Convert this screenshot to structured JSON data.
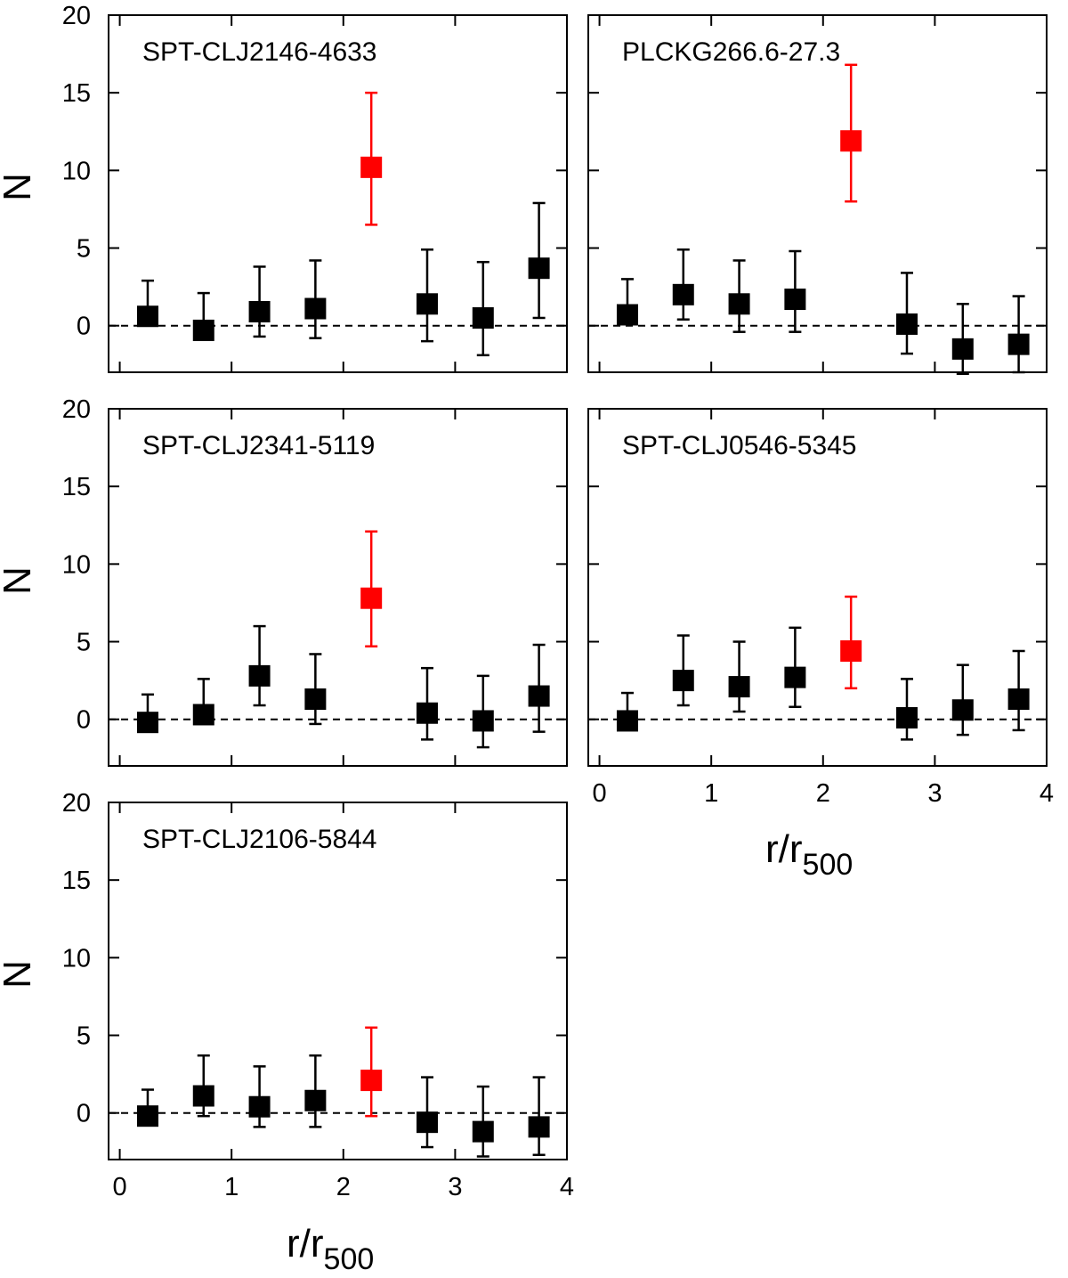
{
  "figure": {
    "shared_xlabel_main": "r/r",
    "shared_xlabel_sub": "500",
    "shared_ylabel": "N",
    "colors": {
      "background_point": "#000000",
      "highlight_point": "#ff0000",
      "zero_line": "#000000"
    }
  },
  "chart_data": [
    {
      "type": "scatter",
      "title": "SPT-CLJ2146-4633",
      "xlabel": "r/r500",
      "ylabel": "N",
      "xlim": [
        -0.1,
        4
      ],
      "ylim": [
        -3,
        20
      ],
      "xticks": [
        "0",
        "1",
        "2",
        "3",
        "4"
      ],
      "yticks": [
        "0",
        "5",
        "10",
        "15",
        "20"
      ],
      "reference_line": 0,
      "x": [
        0.25,
        0.75,
        1.25,
        1.75,
        2.25,
        2.75,
        3.25,
        3.75
      ],
      "y": [
        0.6,
        -0.3,
        0.9,
        1.1,
        10.2,
        1.4,
        0.5,
        3.7
      ],
      "yerr_low": [
        0.3,
        0.4,
        1.6,
        1.9,
        3.7,
        2.4,
        2.4,
        3.2
      ],
      "yerr_high": [
        2.3,
        2.4,
        2.9,
        3.1,
        4.8,
        3.5,
        3.6,
        4.2
      ],
      "highlight_index": 4
    },
    {
      "type": "scatter",
      "title": "PLCKG266.6-27.3",
      "xlabel": "r/r500",
      "ylabel": "N",
      "xlim": [
        -0.1,
        4
      ],
      "ylim": [
        -3,
        20
      ],
      "xticks": [
        "0",
        "1",
        "2",
        "3",
        "4"
      ],
      "yticks": [
        "0",
        "5",
        "10",
        "15",
        "20"
      ],
      "reference_line": 0,
      "x": [
        0.25,
        0.75,
        1.25,
        1.75,
        2.25,
        2.75,
        3.25,
        3.75
      ],
      "y": [
        0.7,
        2.0,
        1.4,
        1.7,
        11.9,
        0.1,
        -1.5,
        -1.2
      ],
      "yerr_low": [
        0.2,
        1.6,
        1.8,
        2.1,
        3.9,
        1.9,
        1.6,
        1.8
      ],
      "yerr_high": [
        2.3,
        2.9,
        2.8,
        3.1,
        4.9,
        3.3,
        2.9,
        3.1
      ],
      "highlight_index": 4
    },
    {
      "type": "scatter",
      "title": "SPT-CLJ2341-5119",
      "xlabel": "r/r500",
      "ylabel": "N",
      "xlim": [
        -0.1,
        4
      ],
      "ylim": [
        -3,
        20
      ],
      "xticks": [
        "0",
        "1",
        "2",
        "3",
        "4"
      ],
      "yticks": [
        "0",
        "5",
        "10",
        "15",
        "20"
      ],
      "reference_line": 0,
      "x": [
        0.25,
        0.75,
        1.25,
        1.75,
        2.25,
        2.75,
        3.25,
        3.75
      ],
      "y": [
        -0.2,
        0.3,
        2.8,
        1.3,
        7.8,
        0.4,
        -0.1,
        1.5
      ],
      "yerr_low": [
        0.2,
        0.3,
        1.9,
        1.6,
        3.1,
        1.7,
        1.7,
        2.3
      ],
      "yerr_high": [
        1.8,
        2.3,
        3.2,
        2.9,
        4.3,
        2.9,
        2.9,
        3.3
      ],
      "highlight_index": 4
    },
    {
      "type": "scatter",
      "title": "SPT-CLJ0546-5345",
      "xlabel": "r/r500",
      "ylabel": "N",
      "xlim": [
        -0.1,
        4
      ],
      "ylim": [
        -3,
        20
      ],
      "xticks": [
        "0",
        "1",
        "2",
        "3",
        "4"
      ],
      "yticks": [
        "0",
        "5",
        "10",
        "15",
        "20"
      ],
      "reference_line": 0,
      "x": [
        0.25,
        0.75,
        1.25,
        1.75,
        2.25,
        2.75,
        3.25,
        3.75
      ],
      "y": [
        -0.1,
        2.5,
        2.1,
        2.7,
        4.4,
        0.1,
        0.6,
        1.3
      ],
      "yerr_low": [
        0.2,
        1.6,
        1.6,
        1.9,
        2.4,
        1.4,
        1.6,
        2.0
      ],
      "yerr_high": [
        1.8,
        2.9,
        2.9,
        3.2,
        3.5,
        2.5,
        2.9,
        3.1
      ],
      "highlight_index": 4
    },
    {
      "type": "scatter",
      "title": "SPT-CLJ2106-5844",
      "xlabel": "r/r500",
      "ylabel": "N",
      "xlim": [
        -0.1,
        4
      ],
      "ylim": [
        -3,
        20
      ],
      "xticks": [
        "0",
        "1",
        "2",
        "3",
        "4"
      ],
      "yticks": [
        "0",
        "5",
        "10",
        "15",
        "20"
      ],
      "reference_line": 0,
      "x": [
        0.25,
        0.75,
        1.25,
        1.75,
        2.25,
        2.75,
        3.25,
        3.75
      ],
      "y": [
        -0.2,
        1.1,
        0.4,
        0.8,
        2.1,
        -0.6,
        -1.2,
        -0.9
      ],
      "yerr_low": [
        0.2,
        1.3,
        1.3,
        1.7,
        2.3,
        1.6,
        1.6,
        1.8
      ],
      "yerr_high": [
        1.7,
        2.6,
        2.6,
        2.9,
        3.4,
        2.9,
        2.9,
        3.2
      ],
      "highlight_index": 4
    }
  ]
}
